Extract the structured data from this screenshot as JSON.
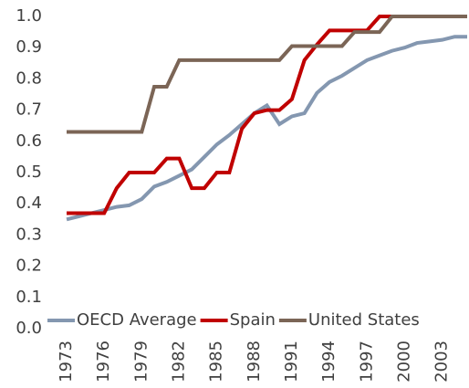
{
  "chart_data": {
    "type": "line",
    "x": [
      1973,
      1974,
      1975,
      1976,
      1977,
      1978,
      1979,
      1980,
      1981,
      1982,
      1983,
      1984,
      1985,
      1986,
      1987,
      1988,
      1989,
      1990,
      1991,
      1992,
      1993,
      1994,
      1995,
      1996,
      1997,
      1998,
      1999,
      2000,
      2001,
      2002,
      2003,
      2004,
      2005
    ],
    "series": [
      {
        "name": "OECD Average",
        "color": "#8497b0",
        "values": [
          0.35,
          0.36,
          0.37,
          0.38,
          0.39,
          0.395,
          0.415,
          0.455,
          0.47,
          0.49,
          0.51,
          0.55,
          0.59,
          0.62,
          0.655,
          0.69,
          0.715,
          0.655,
          0.68,
          0.69,
          0.755,
          0.79,
          0.81,
          0.835,
          0.86,
          0.875,
          0.89,
          0.9,
          0.915,
          0.92,
          0.925,
          0.935,
          0.935
        ]
      },
      {
        "name": "Spain",
        "color": "#c00000",
        "values": [
          0.37,
          0.37,
          0.37,
          0.37,
          0.45,
          0.5,
          0.5,
          0.5,
          0.545,
          0.545,
          0.45,
          0.45,
          0.5,
          0.5,
          0.64,
          0.69,
          0.7,
          0.7,
          0.735,
          0.86,
          0.91,
          0.955,
          0.955,
          0.955,
          0.955,
          1.0,
          1.0,
          1.0,
          1.0,
          1.0,
          1.0,
          1.0,
          1.0
        ]
      },
      {
        "name": "United States",
        "color": "#7b6556",
        "values": [
          0.63,
          0.63,
          0.63,
          0.63,
          0.63,
          0.63,
          0.63,
          0.775,
          0.775,
          0.86,
          0.86,
          0.86,
          0.86,
          0.86,
          0.86,
          0.86,
          0.86,
          0.86,
          0.905,
          0.905,
          0.905,
          0.905,
          0.905,
          0.95,
          0.95,
          0.95,
          1.0,
          1.0,
          1.0,
          1.0,
          1.0,
          1.0,
          1.0
        ]
      }
    ],
    "xlim": [
      1973,
      2005
    ],
    "xticks": [
      1973,
      1976,
      1979,
      1982,
      1985,
      1988,
      1991,
      1994,
      1997,
      2000,
      2003
    ],
    "ylim": [
      0,
      1
    ],
    "yticks": [
      {
        "value": 0,
        "label": "0.0"
      },
      0.1,
      0.2,
      0.3,
      0.4,
      0.5,
      0.6,
      0.7,
      0.8,
      0.9,
      {
        "value": 1,
        "label": "1.0"
      }
    ],
    "legend": "bottom"
  }
}
